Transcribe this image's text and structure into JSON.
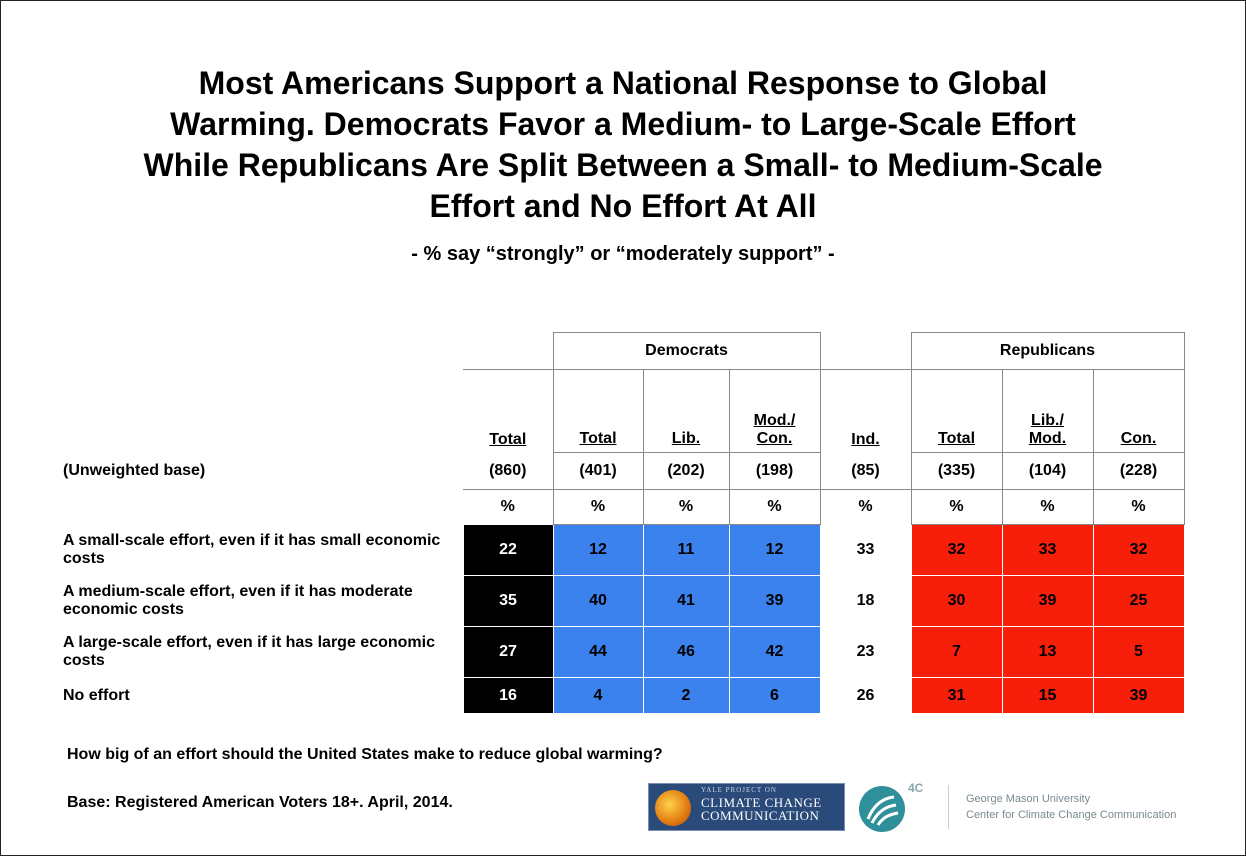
{
  "title": "Most Americans Support a National Response to Global Warming. Democrats Favor a Medium- to Large-Scale Effort While Republicans Are Split Between a Small- to Medium-Scale Effort and No Effort At All",
  "title_lines": [
    "Most Americans Support a National Response to Global",
    "Warming. Democrats Favor a Medium- to Large-Scale Effort",
    "While Republicans Are Split Between a Small- to Medium-Scale",
    "Effort and No Effort At All"
  ],
  "subtitle": "- % say “strongly” or “moderately support” -",
  "chart_data": {
    "type": "table",
    "groups": {
      "democrats": "Democrats",
      "republicans": "Republicans"
    },
    "columns": [
      "Total",
      "Total",
      "Lib.",
      "Mod./ Con.",
      "Ind.",
      "Total",
      "Lib./ Mod.",
      "Con."
    ],
    "column_groups": [
      "",
      "Democrats",
      "Democrats",
      "Democrats",
      "",
      "Republicans",
      "Republicans",
      "Republicans"
    ],
    "base_label": "(Unweighted base)",
    "bases": [
      "(860)",
      "(401)",
      "(202)",
      "(198)",
      "(85)",
      "(335)",
      "(104)",
      "(228)"
    ],
    "unit_row": [
      "%",
      "%",
      "%",
      "%",
      "%",
      "%",
      "%",
      "%"
    ],
    "rows": [
      {
        "label": "A small-scale effort, even if it has small economic costs",
        "values": [
          22,
          12,
          11,
          12,
          33,
          32,
          33,
          32
        ]
      },
      {
        "label": "A medium-scale effort, even if it has moderate economic costs",
        "values": [
          35,
          40,
          41,
          39,
          18,
          30,
          39,
          25
        ]
      },
      {
        "label": "A large-scale effort, even if it has large economic costs",
        "values": [
          27,
          44,
          46,
          42,
          23,
          7,
          13,
          5
        ]
      },
      {
        "label": "No effort",
        "values": [
          16,
          4,
          2,
          6,
          26,
          31,
          15,
          39
        ]
      }
    ],
    "colors": {
      "total": "#000000",
      "democrats": "#3b82ef",
      "independents": "#ffffff",
      "republicans": "#f81f0a"
    }
  },
  "question": "How big of an effort should the United States make to reduce global warming?",
  "base_note": "Base: Registered American Voters 18+. April, 2014.",
  "logos": {
    "yale_small": "YALE PROJECT ON",
    "yale_main": "CLIMATE CHANGE COMMUNICATION",
    "yale_tag": "",
    "fourc": "4C",
    "gmu_line1": "George Mason University",
    "gmu_line2": "Center for Climate Change Communication"
  }
}
